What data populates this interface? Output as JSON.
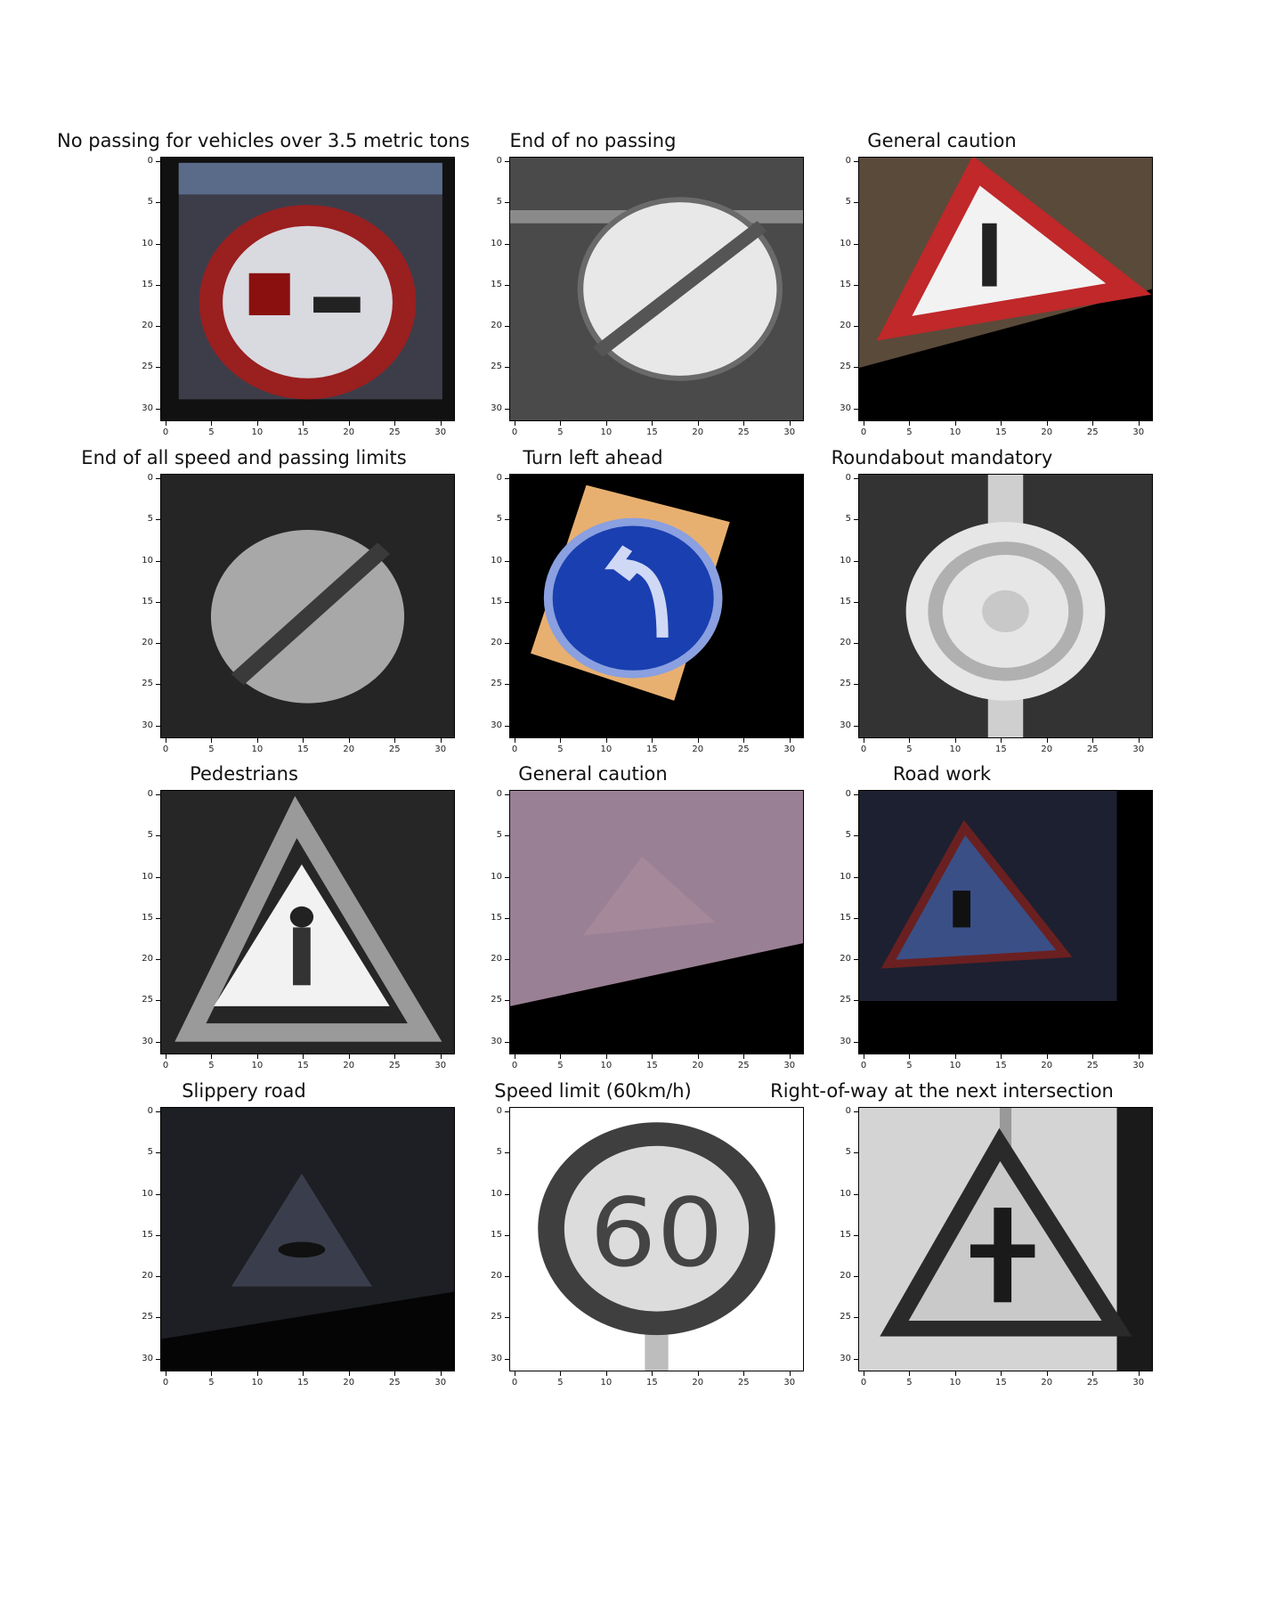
{
  "figure": {
    "panels": [
      {
        "title": "No passing for vehicles over 3.5 metric tons",
        "icon": "no-passing-trucks-sign-image",
        "bg": "#111111"
      },
      {
        "title": "End of no passing",
        "icon": "end-no-passing-sign-image",
        "bg": "#555555"
      },
      {
        "title": "General caution",
        "icon": "general-caution-sign-image",
        "bg": "#5a4a3a"
      },
      {
        "title": "End of all speed and passing limits",
        "icon": "end-all-limits-sign-image",
        "bg": "#2b2b2b"
      },
      {
        "title": "Turn left ahead",
        "icon": "turn-left-ahead-sign-image",
        "bg": "#000000"
      },
      {
        "title": "Roundabout mandatory",
        "icon": "roundabout-mandatory-sign-image",
        "bg": "#3a3a3a"
      },
      {
        "title": "Pedestrians",
        "icon": "pedestrians-sign-image",
        "bg": "#2a2a2a"
      },
      {
        "title": "General caution",
        "icon": "general-caution-sign-image-2",
        "bg": "#000000"
      },
      {
        "title": "Road work",
        "icon": "road-work-sign-image",
        "bg": "#000000"
      },
      {
        "title": "Slippery road",
        "icon": "slippery-road-sign-image",
        "bg": "#1a1a1a"
      },
      {
        "title": "Speed limit (60km/h)",
        "icon": "speed-limit-60-sign-image",
        "bg": "#ffffff"
      },
      {
        "title": "Right-of-way at the next intersection",
        "icon": "right-of-way-sign-image",
        "bg": "#cfcfcf"
      }
    ],
    "ticks": [
      "0",
      "5",
      "10",
      "15",
      "20",
      "25",
      "30"
    ]
  }
}
